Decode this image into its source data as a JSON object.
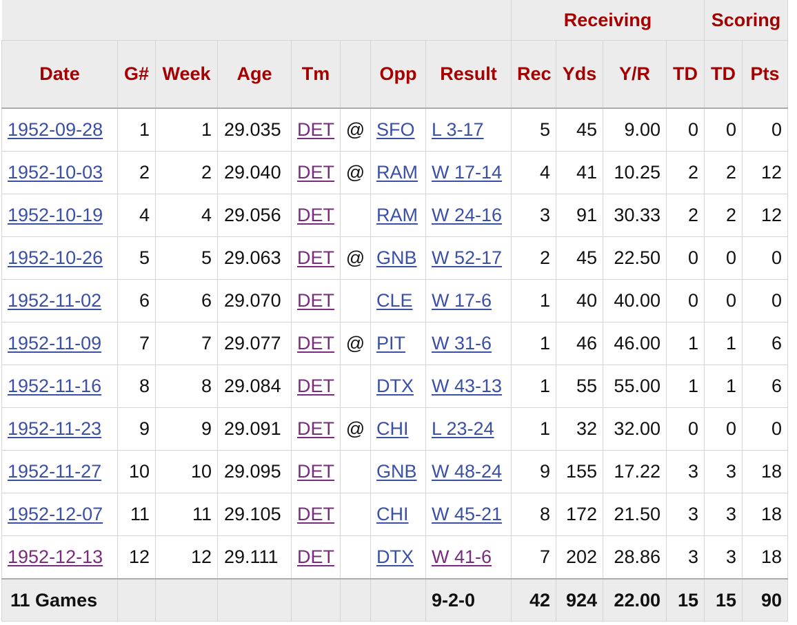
{
  "groups": {
    "receiving": "Receiving",
    "scoring": "Scoring"
  },
  "headers": [
    "Date",
    "G#",
    "Week",
    "Age",
    "Tm",
    "",
    "Opp",
    "Result",
    "Rec",
    "Yds",
    "Y/R",
    "TD",
    "TD",
    "Pts"
  ],
  "rows": [
    {
      "date": "1952-09-28",
      "g": "1",
      "week": "1",
      "age": "29.035",
      "tm": "DET",
      "loc": "@",
      "opp": "SFO",
      "result": "L 3-17",
      "rec": "5",
      "yds": "45",
      "yr": "9.00",
      "td_rec": "0",
      "td": "0",
      "pts": "0",
      "date_visited": false,
      "result_visited": false
    },
    {
      "date": "1952-10-03",
      "g": "2",
      "week": "2",
      "age": "29.040",
      "tm": "DET",
      "loc": "@",
      "opp": "RAM",
      "result": "W 17-14",
      "rec": "4",
      "yds": "41",
      "yr": "10.25",
      "td_rec": "2",
      "td": "2",
      "pts": "12",
      "date_visited": false,
      "result_visited": false
    },
    {
      "date": "1952-10-19",
      "g": "4",
      "week": "4",
      "age": "29.056",
      "tm": "DET",
      "loc": "",
      "opp": "RAM",
      "result": "W 24-16",
      "rec": "3",
      "yds": "91",
      "yr": "30.33",
      "td_rec": "2",
      "td": "2",
      "pts": "12",
      "date_visited": false,
      "result_visited": false
    },
    {
      "date": "1952-10-26",
      "g": "5",
      "week": "5",
      "age": "29.063",
      "tm": "DET",
      "loc": "@",
      "opp": "GNB",
      "result": "W 52-17",
      "rec": "2",
      "yds": "45",
      "yr": "22.50",
      "td_rec": "0",
      "td": "0",
      "pts": "0",
      "date_visited": false,
      "result_visited": false
    },
    {
      "date": "1952-11-02",
      "g": "6",
      "week": "6",
      "age": "29.070",
      "tm": "DET",
      "loc": "",
      "opp": "CLE",
      "result": "W 17-6",
      "rec": "1",
      "yds": "40",
      "yr": "40.00",
      "td_rec": "0",
      "td": "0",
      "pts": "0",
      "date_visited": false,
      "result_visited": false
    },
    {
      "date": "1952-11-09",
      "g": "7",
      "week": "7",
      "age": "29.077",
      "tm": "DET",
      "loc": "@",
      "opp": "PIT",
      "result": "W 31-6",
      "rec": "1",
      "yds": "46",
      "yr": "46.00",
      "td_rec": "1",
      "td": "1",
      "pts": "6",
      "date_visited": false,
      "result_visited": false
    },
    {
      "date": "1952-11-16",
      "g": "8",
      "week": "8",
      "age": "29.084",
      "tm": "DET",
      "loc": "",
      "opp": "DTX",
      "result": "W 43-13",
      "rec": "1",
      "yds": "55",
      "yr": "55.00",
      "td_rec": "1",
      "td": "1",
      "pts": "6",
      "date_visited": false,
      "result_visited": false
    },
    {
      "date": "1952-11-23",
      "g": "9",
      "week": "9",
      "age": "29.091",
      "tm": "DET",
      "loc": "@",
      "opp": "CHI",
      "result": "L 23-24",
      "rec": "1",
      "yds": "32",
      "yr": "32.00",
      "td_rec": "0",
      "td": "0",
      "pts": "0",
      "date_visited": false,
      "result_visited": false
    },
    {
      "date": "1952-11-27",
      "g": "10",
      "week": "10",
      "age": "29.095",
      "tm": "DET",
      "loc": "",
      "opp": "GNB",
      "result": "W 48-24",
      "rec": "9",
      "yds": "155",
      "yr": "17.22",
      "td_rec": "3",
      "td": "3",
      "pts": "18",
      "date_visited": false,
      "result_visited": false
    },
    {
      "date": "1952-12-07",
      "g": "11",
      "week": "11",
      "age": "29.105",
      "tm": "DET",
      "loc": "",
      "opp": "CHI",
      "result": "W 45-21",
      "rec": "8",
      "yds": "172",
      "yr": "21.50",
      "td_rec": "3",
      "td": "3",
      "pts": "18",
      "date_visited": false,
      "result_visited": false
    },
    {
      "date": "1952-12-13",
      "g": "12",
      "week": "12",
      "age": "29.111",
      "tm": "DET",
      "loc": "",
      "opp": "DTX",
      "result": "W 41-6",
      "rec": "7",
      "yds": "202",
      "yr": "28.86",
      "td_rec": "3",
      "td": "3",
      "pts": "18",
      "date_visited": true,
      "result_visited": true
    }
  ],
  "totals": {
    "label": "11 Games",
    "result": "9-2-0",
    "rec": "42",
    "yds": "924",
    "yr": "22.00",
    "td_rec": "15",
    "td": "15",
    "pts": "90"
  },
  "colors": {
    "header_text": "#a50000",
    "header_bg": "#ececec",
    "link": "#3a4fa8",
    "visited_link": "#7a2b7f",
    "border": "#d4d4d4"
  }
}
